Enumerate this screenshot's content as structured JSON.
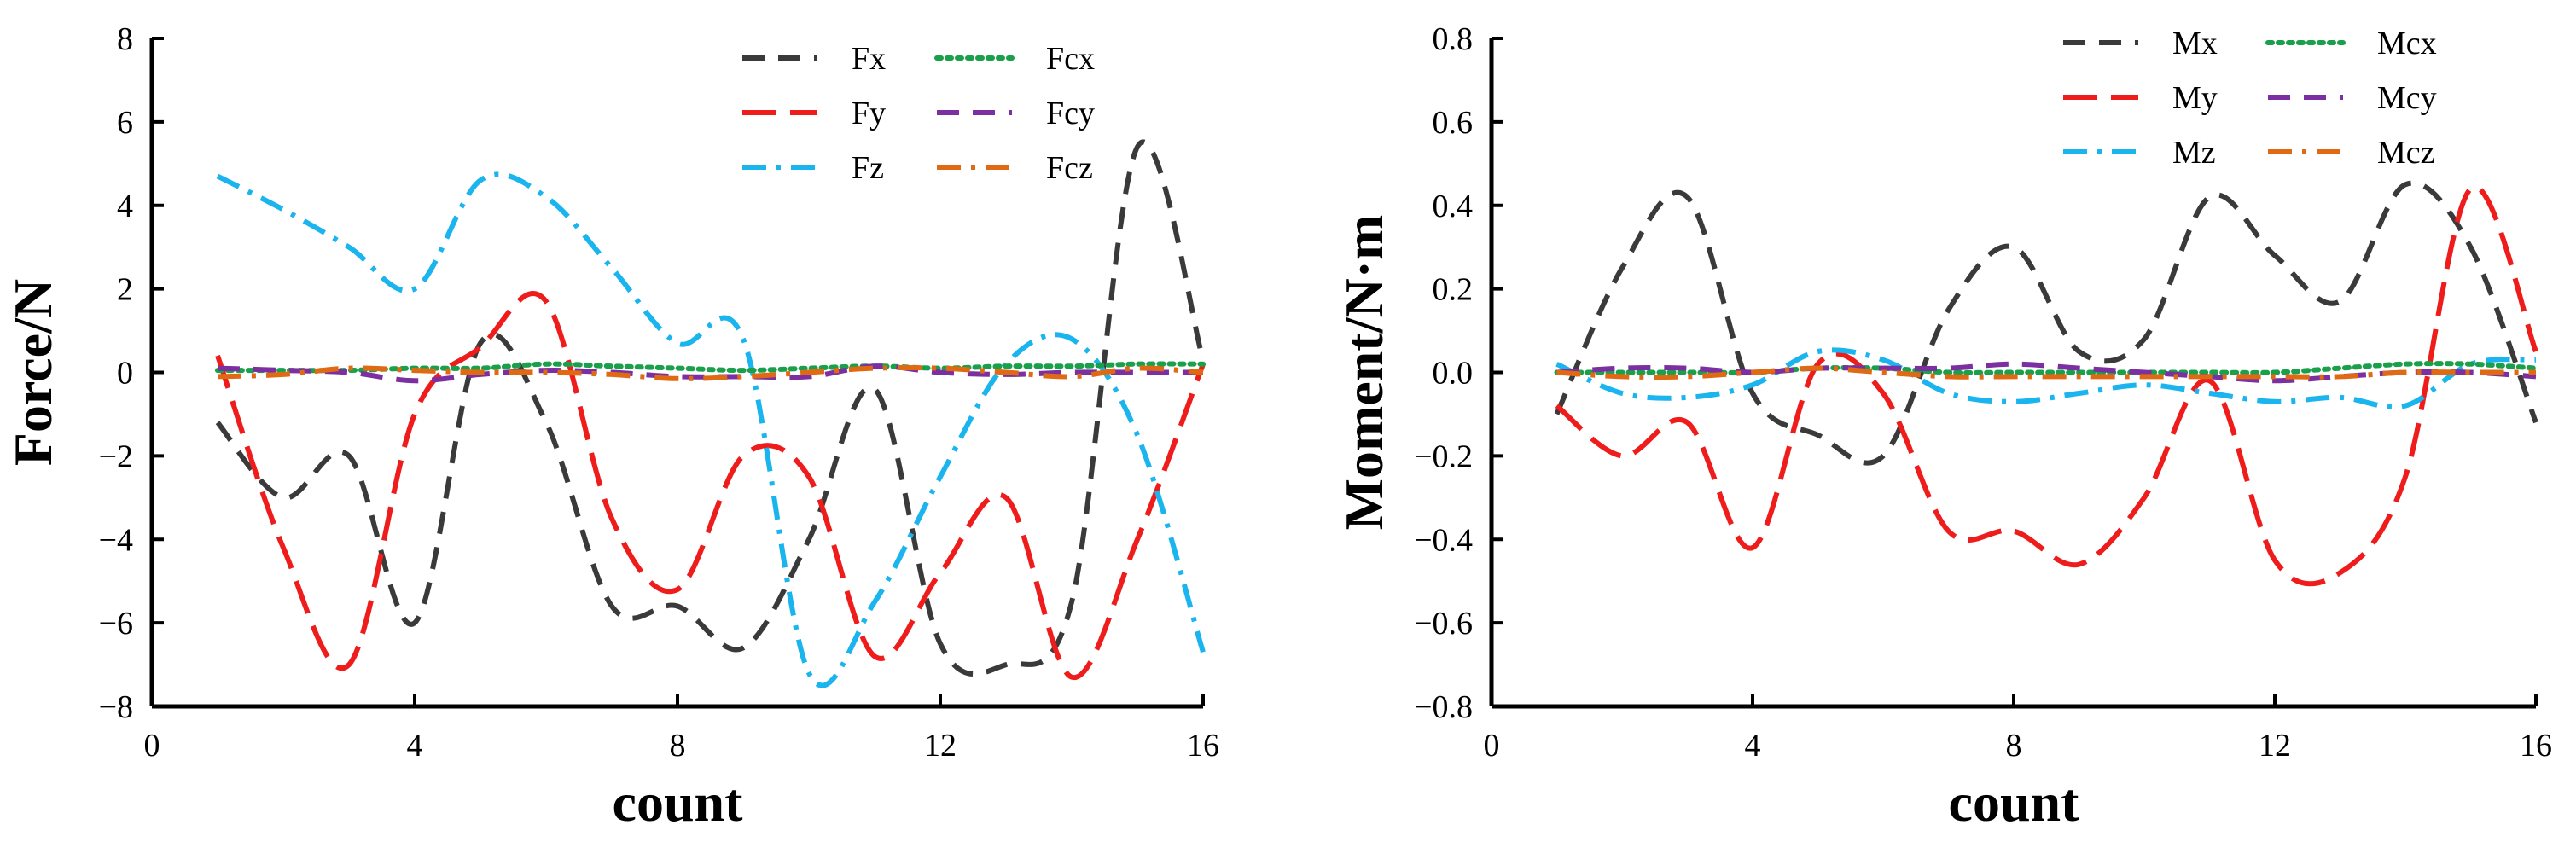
{
  "chart_data": [
    {
      "type": "line",
      "title": "",
      "xlabel": "count",
      "ylabel": "Force/N",
      "xlim": [
        0,
        16
      ],
      "ylim": [
        -8,
        8
      ],
      "xticks": [
        "0",
        "4",
        "8",
        "12",
        "16"
      ],
      "xtick_values": [
        0,
        4,
        8,
        12,
        16
      ],
      "yticks": [
        "8",
        "6",
        "4",
        "2",
        "0",
        "−2",
        "−4",
        "−6",
        "−8"
      ],
      "ytick_values": [
        8,
        6,
        4,
        2,
        0,
        -2,
        -4,
        -6,
        -8
      ],
      "legend_position": "top-right",
      "series": [
        {
          "name": "Fx",
          "color": "#3a3a3a",
          "dash": "dash",
          "points": [
            [
              1,
              -1.2
            ],
            [
              2,
              -3.0
            ],
            [
              3,
              -2.0
            ],
            [
              4,
              -6.0
            ],
            [
              5,
              0.7
            ],
            [
              6,
              -1.2
            ],
            [
              7,
              -5.6
            ],
            [
              8,
              -5.6
            ],
            [
              9,
              -6.6
            ],
            [
              10,
              -4.0
            ],
            [
              11,
              -0.4
            ],
            [
              12,
              -6.5
            ],
            [
              13,
              -7.0
            ],
            [
              14,
              -5.5
            ],
            [
              15,
              5.4
            ],
            [
              16,
              0.3
            ]
          ]
        },
        {
          "name": "Fy",
          "color": "#ef1c1c",
          "dash": "longdash",
          "points": [
            [
              1,
              0.4
            ],
            [
              2,
              -4.2
            ],
            [
              3,
              -7.0
            ],
            [
              4,
              -1.0
            ],
            [
              5,
              0.6
            ],
            [
              6,
              1.7
            ],
            [
              7,
              -3.5
            ],
            [
              8,
              -5.2
            ],
            [
              9,
              -2.0
            ],
            [
              10,
              -2.5
            ],
            [
              11,
              -6.8
            ],
            [
              12,
              -4.8
            ],
            [
              13,
              -3.0
            ],
            [
              14,
              -7.3
            ],
            [
              15,
              -4.0
            ],
            [
              16,
              0.2
            ]
          ]
        },
        {
          "name": "Fz",
          "color": "#1ab4ee",
          "dash": "dashdot",
          "points": [
            [
              1,
              4.7
            ],
            [
              2,
              3.9
            ],
            [
              3,
              3.0
            ],
            [
              4,
              2.0
            ],
            [
              5,
              4.6
            ],
            [
              6,
              4.2
            ],
            [
              7,
              2.5
            ],
            [
              8,
              0.7
            ],
            [
              9,
              0.8
            ],
            [
              10,
              -7.2
            ],
            [
              11,
              -5.5
            ],
            [
              12,
              -2.5
            ],
            [
              13,
              0.2
            ],
            [
              14,
              0.8
            ],
            [
              15,
              -1.5
            ],
            [
              16,
              -6.7
            ]
          ]
        },
        {
          "name": "Fcx",
          "color": "#1aa04a",
          "dash": "dot",
          "points": [
            [
              1,
              0.05
            ],
            [
              2,
              0.05
            ],
            [
              3,
              0.05
            ],
            [
              4,
              0.1
            ],
            [
              5,
              0.1
            ],
            [
              6,
              0.2
            ],
            [
              7,
              0.15
            ],
            [
              8,
              0.1
            ],
            [
              9,
              0.05
            ],
            [
              10,
              0.1
            ],
            [
              11,
              0.15
            ],
            [
              12,
              0.1
            ],
            [
              13,
              0.15
            ],
            [
              14,
              0.15
            ],
            [
              15,
              0.2
            ],
            [
              16,
              0.2
            ]
          ]
        },
        {
          "name": "Fcy",
          "color": "#7b2fa0",
          "dash": "dash",
          "points": [
            [
              1,
              0.1
            ],
            [
              2,
              0.05
            ],
            [
              3,
              0.0
            ],
            [
              4,
              -0.2
            ],
            [
              5,
              -0.05
            ],
            [
              6,
              0.05
            ],
            [
              7,
              0.0
            ],
            [
              8,
              -0.1
            ],
            [
              9,
              -0.1
            ],
            [
              10,
              -0.1
            ],
            [
              11,
              0.15
            ],
            [
              12,
              0.0
            ],
            [
              13,
              -0.05
            ],
            [
              14,
              0.0
            ],
            [
              15,
              0.0
            ],
            [
              16,
              0.0
            ]
          ]
        },
        {
          "name": "Fcz",
          "color": "#e06a14",
          "dash": "dashdot",
          "points": [
            [
              1,
              -0.1
            ],
            [
              2,
              -0.05
            ],
            [
              3,
              0.1
            ],
            [
              4,
              0.05
            ],
            [
              5,
              0.0
            ],
            [
              6,
              0.0
            ],
            [
              7,
              -0.05
            ],
            [
              8,
              -0.15
            ],
            [
              9,
              -0.1
            ],
            [
              10,
              0.0
            ],
            [
              11,
              0.1
            ],
            [
              12,
              0.1
            ],
            [
              13,
              0.0
            ],
            [
              14,
              -0.1
            ],
            [
              15,
              0.1
            ],
            [
              16,
              0.0
            ]
          ]
        }
      ]
    },
    {
      "type": "line",
      "title": "",
      "xlabel": "count",
      "ylabel": "Moment/N·m",
      "xlim": [
        0,
        16
      ],
      "ylim": [
        -0.8,
        0.8
      ],
      "xticks": [
        "0",
        "4",
        "8",
        "12",
        "16"
      ],
      "xtick_values": [
        0,
        4,
        8,
        12,
        16
      ],
      "yticks": [
        "0.8",
        "0.6",
        "0.4",
        "0.2",
        "0.0",
        "−0.2",
        "−0.4",
        "−0.6",
        "−0.8"
      ],
      "ytick_values": [
        0.8,
        0.6,
        0.4,
        0.2,
        0.0,
        -0.2,
        -0.4,
        -0.6,
        -0.8
      ],
      "legend_position": "top-right",
      "series": [
        {
          "name": "Mx",
          "color": "#3a3a3a",
          "dash": "dash",
          "points": [
            [
              1,
              -0.1
            ],
            [
              2,
              0.25
            ],
            [
              3,
              0.42
            ],
            [
              4,
              -0.05
            ],
            [
              5,
              -0.15
            ],
            [
              6,
              -0.2
            ],
            [
              7,
              0.15
            ],
            [
              8,
              0.3
            ],
            [
              9,
              0.05
            ],
            [
              10,
              0.08
            ],
            [
              11,
              0.42
            ],
            [
              12,
              0.28
            ],
            [
              13,
              0.17
            ],
            [
              14,
              0.45
            ],
            [
              15,
              0.3
            ],
            [
              16,
              -0.12
            ]
          ]
        },
        {
          "name": "My",
          "color": "#ef1c1c",
          "dash": "longdash",
          "points": [
            [
              1,
              -0.08
            ],
            [
              2,
              -0.2
            ],
            [
              3,
              -0.12
            ],
            [
              4,
              -0.42
            ],
            [
              5,
              0.02
            ],
            [
              6,
              -0.05
            ],
            [
              7,
              -0.38
            ],
            [
              8,
              -0.38
            ],
            [
              9,
              -0.46
            ],
            [
              10,
              -0.3
            ],
            [
              11,
              -0.02
            ],
            [
              12,
              -0.45
            ],
            [
              13,
              -0.48
            ],
            [
              14,
              -0.25
            ],
            [
              15,
              0.44
            ],
            [
              16,
              0.05
            ]
          ]
        },
        {
          "name": "Mz",
          "color": "#1ab4ee",
          "dash": "dashdot",
          "points": [
            [
              1,
              0.02
            ],
            [
              2,
              -0.05
            ],
            [
              3,
              -0.06
            ],
            [
              4,
              -0.03
            ],
            [
              5,
              0.05
            ],
            [
              6,
              0.03
            ],
            [
              7,
              -0.05
            ],
            [
              8,
              -0.07
            ],
            [
              9,
              -0.05
            ],
            [
              10,
              -0.03
            ],
            [
              11,
              -0.05
            ],
            [
              12,
              -0.07
            ],
            [
              13,
              -0.06
            ],
            [
              14,
              -0.08
            ],
            [
              15,
              0.02
            ],
            [
              16,
              0.03
            ]
          ]
        },
        {
          "name": "Mcx",
          "color": "#1aa04a",
          "dash": "dot",
          "points": [
            [
              1,
              0.0
            ],
            [
              2,
              0.0
            ],
            [
              3,
              0.0
            ],
            [
              4,
              0.0
            ],
            [
              5,
              0.01
            ],
            [
              6,
              0.01
            ],
            [
              7,
              0.0
            ],
            [
              8,
              0.0
            ],
            [
              9,
              0.0
            ],
            [
              10,
              0.0
            ],
            [
              11,
              0.0
            ],
            [
              12,
              0.0
            ],
            [
              13,
              0.01
            ],
            [
              14,
              0.02
            ],
            [
              15,
              0.02
            ],
            [
              16,
              0.01
            ]
          ]
        },
        {
          "name": "Mcy",
          "color": "#7b2fa0",
          "dash": "dash",
          "points": [
            [
              1,
              0.0
            ],
            [
              2,
              0.01
            ],
            [
              3,
              0.01
            ],
            [
              4,
              0.0
            ],
            [
              5,
              0.01
            ],
            [
              6,
              0.01
            ],
            [
              7,
              0.01
            ],
            [
              8,
              0.02
            ],
            [
              9,
              0.01
            ],
            [
              10,
              0.0
            ],
            [
              11,
              -0.01
            ],
            [
              12,
              -0.02
            ],
            [
              13,
              -0.01
            ],
            [
              14,
              0.0
            ],
            [
              15,
              0.0
            ],
            [
              16,
              -0.01
            ]
          ]
        },
        {
          "name": "Mcz",
          "color": "#e06a14",
          "dash": "dashdot",
          "points": [
            [
              1,
              0.0
            ],
            [
              2,
              -0.01
            ],
            [
              3,
              -0.01
            ],
            [
              4,
              0.0
            ],
            [
              5,
              0.01
            ],
            [
              6,
              0.0
            ],
            [
              7,
              -0.01
            ],
            [
              8,
              -0.01
            ],
            [
              9,
              -0.01
            ],
            [
              10,
              -0.01
            ],
            [
              11,
              -0.01
            ],
            [
              12,
              -0.01
            ],
            [
              13,
              -0.01
            ],
            [
              14,
              0.0
            ],
            [
              15,
              0.0
            ],
            [
              16,
              0.0
            ]
          ]
        }
      ]
    }
  ]
}
